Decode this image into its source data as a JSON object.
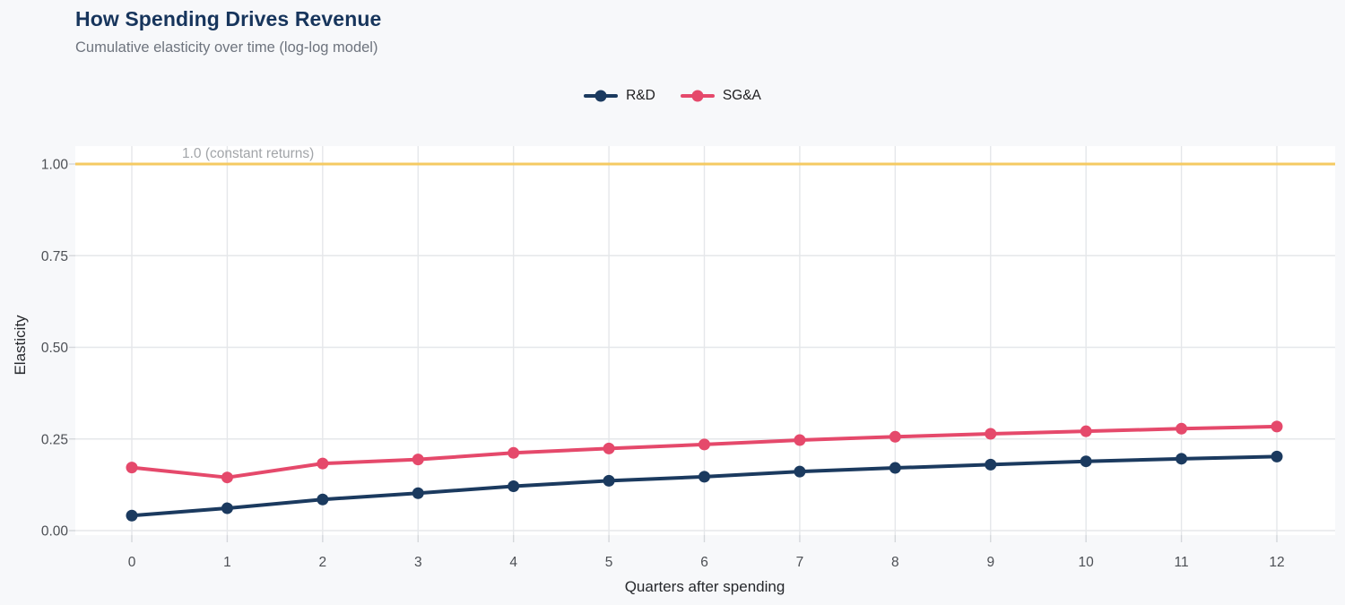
{
  "header": {
    "title": "How Spending Drives Revenue",
    "subtitle": "Cumulative elasticity over time (log-log model)"
  },
  "chart_data": {
    "type": "line",
    "x": [
      0,
      1,
      2,
      3,
      4,
      5,
      6,
      7,
      8,
      9,
      10,
      11,
      12
    ],
    "series": [
      {
        "name": "R&D",
        "color": "#1b3a5f",
        "values": [
          0.041,
          0.061,
          0.085,
          0.102,
          0.121,
          0.136,
          0.147,
          0.161,
          0.171,
          0.18,
          0.189,
          0.196,
          0.202
        ]
      },
      {
        "name": "SG&A",
        "color": "#e5496b",
        "values": [
          0.172,
          0.145,
          0.183,
          0.194,
          0.212,
          0.224,
          0.235,
          0.247,
          0.256,
          0.264,
          0.271,
          0.278,
          0.284
        ]
      }
    ],
    "title": "How Spending Drives Revenue",
    "subtitle": "Cumulative elasticity over time (log-log model)",
    "xlabel": "Quarters after spending",
    "ylabel": "Elasticity",
    "xlim": [
      0,
      12
    ],
    "ylim": [
      0,
      1.0
    ],
    "xticks": [
      0,
      1,
      2,
      3,
      4,
      5,
      6,
      7,
      8,
      9,
      10,
      11,
      12
    ],
    "yticks": [
      0,
      0.25,
      0.5,
      0.75,
      1.0
    ],
    "ytick_labels": [
      "0.00",
      "0.25",
      "0.50",
      "0.75",
      "1.00"
    ],
    "reference_line": {
      "value": 1.0,
      "label": "1.0 (constant returns)",
      "color": "#f5ca62"
    },
    "grid": true,
    "legend_position": "top-center"
  },
  "colors": {
    "page_background": "#f7f8fa",
    "plot_background": "#ffffff",
    "gridline": "#e5e7ea",
    "tick_text": "#4c4f54",
    "title_text": "#17355c",
    "subtitle_text": "#6e747e",
    "annotation_text": "#a2a5a9"
  }
}
